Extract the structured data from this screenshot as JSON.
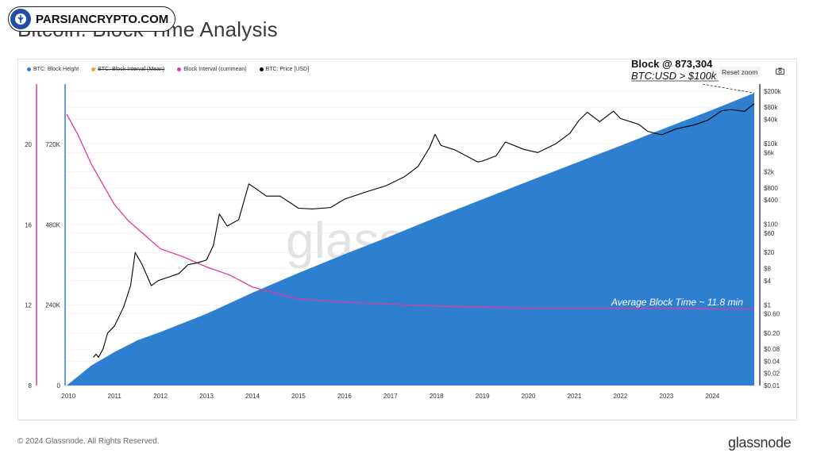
{
  "header": {
    "logo_text": "PARSIANCRYPTO.COM",
    "title": "Bitcoin: Block Time Analysis"
  },
  "legend": [
    {
      "label": "BTC: Block Height",
      "color": "#2f7fd0",
      "struck": false
    },
    {
      "label": "BTC: Block Interval (Mean)",
      "color": "#e8a23a",
      "struck": true
    },
    {
      "label": "Block Interval (cummean)",
      "color": "#e2399b",
      "struck": false
    },
    {
      "label": "BTC: Price [USD]",
      "color": "#000000",
      "struck": false
    }
  ],
  "controls": {
    "reset_zoom": "Reset zoom",
    "camera_icon": "camera-icon"
  },
  "annotations": {
    "block": "Block @ 873,304",
    "price": "BTC:USD > $100k",
    "avg": "Average Block Time ~ 11.8 min"
  },
  "watermark": "glassnode",
  "footer": {
    "copyright": "© 2024 Glassnode. All Rights Reserved.",
    "brand": "glassnode"
  },
  "colors": {
    "block_fill": "#2f7fd0",
    "interval_line": "#e2399b",
    "price_line": "#000000"
  },
  "chart_data": {
    "type": "area",
    "x_ticks": [
      "2010",
      "2011",
      "2012",
      "2013",
      "2014",
      "2015",
      "2016",
      "2017",
      "2018",
      "2019",
      "2020",
      "2021",
      "2022",
      "2023",
      "2024"
    ],
    "xlim": [
      2009.96,
      2024.91
    ],
    "axes": {
      "interval": {
        "ticks": [
          "8",
          "12",
          "16",
          "20"
        ],
        "ylim": [
          8,
          23
        ]
      },
      "height": {
        "ticks": [
          "0",
          "240K",
          "480K",
          "720K"
        ],
        "ylim": [
          0,
          900000
        ]
      },
      "price": {
        "scale": "log",
        "ticks": [
          "$0.01",
          "$0.02",
          "$0.04",
          "$0.08",
          "$0.20",
          "$0.60",
          "$1",
          "$4",
          "$8",
          "$20",
          "$60",
          "$100",
          "$400",
          "$800",
          "$2k",
          "$6k",
          "$10k",
          "$40k",
          "$80k",
          "$200k"
        ],
        "tick_values": [
          0.01,
          0.02,
          0.04,
          0.08,
          0.2,
          0.6,
          1,
          4,
          8,
          20,
          60,
          100,
          400,
          800,
          2000,
          6000,
          10000,
          40000,
          80000,
          200000
        ],
        "ylim": [
          0.01,
          300000
        ]
      }
    },
    "series": [
      {
        "name": "BTC: Block Height",
        "axis": "height",
        "style": "area",
        "x": [
          2009.96,
          2010.5,
          2011.0,
          2011.5,
          2012.0,
          2013.0,
          2014.0,
          2015.0,
          2016.0,
          2017.0,
          2018.0,
          2019.0,
          2020.0,
          2021.0,
          2022.0,
          2023.0,
          2024.0,
          2024.91
        ],
        "values": [
          0,
          60000,
          100000,
          135000,
          160000,
          214000,
          277000,
          336000,
          392000,
          446000,
          502000,
          556000,
          610000,
          663000,
          716000,
          770000,
          823000,
          873304
        ]
      },
      {
        "name": "Block Interval (cummean)",
        "axis": "interval",
        "x": [
          2009.96,
          2010.2,
          2010.5,
          2010.8,
          2011.0,
          2011.3,
          2011.6,
          2012.0,
          2012.5,
          2013.0,
          2013.5,
          2014.0,
          2014.5,
          2015.0,
          2016.0,
          2017.0,
          2018.0,
          2019.0,
          2020.0,
          2021.0,
          2022.0,
          2023.0,
          2024.0,
          2024.91
        ],
        "values": [
          21.5,
          20.5,
          19.0,
          17.8,
          17.0,
          16.2,
          15.6,
          14.8,
          14.4,
          13.9,
          13.5,
          12.9,
          12.6,
          12.3,
          12.15,
          12.05,
          11.95,
          11.9,
          11.85,
          11.85,
          11.85,
          11.85,
          11.8,
          11.8
        ]
      },
      {
        "name": "BTC: Price [USD]",
        "axis": "price",
        "x": [
          2010.54,
          2010.6,
          2010.65,
          2010.75,
          2010.85,
          2011.0,
          2011.2,
          2011.35,
          2011.45,
          2011.6,
          2011.8,
          2011.95,
          2012.2,
          2012.4,
          2012.6,
          2012.8,
          2013.0,
          2013.15,
          2013.28,
          2013.45,
          2013.7,
          2013.92,
          2014.05,
          2014.3,
          2014.6,
          2015.0,
          2015.3,
          2015.7,
          2016.0,
          2016.5,
          2016.9,
          2017.3,
          2017.6,
          2017.85,
          2017.97,
          2018.1,
          2018.4,
          2018.9,
          2019.0,
          2019.3,
          2019.5,
          2019.9,
          2020.2,
          2020.6,
          2020.9,
          2021.1,
          2021.28,
          2021.55,
          2021.85,
          2022.0,
          2022.4,
          2022.6,
          2022.9,
          2023.2,
          2023.6,
          2023.9,
          2024.2,
          2024.4,
          2024.7,
          2024.91
        ],
        "values": [
          0.05,
          0.06,
          0.05,
          0.08,
          0.2,
          0.3,
          0.9,
          3.0,
          20,
          10,
          3,
          4,
          5,
          6,
          10,
          11,
          13,
          30,
          180,
          90,
          130,
          1000,
          800,
          500,
          500,
          250,
          240,
          260,
          420,
          650,
          900,
          1500,
          2700,
          8000,
          17000,
          9000,
          7000,
          3500,
          3700,
          5000,
          11000,
          7200,
          6000,
          10000,
          18000,
          38000,
          60000,
          35000,
          64000,
          42000,
          30000,
          20000,
          16500,
          23000,
          29000,
          38000,
          65000,
          70000,
          63000,
          98000
        ]
      }
    ]
  }
}
